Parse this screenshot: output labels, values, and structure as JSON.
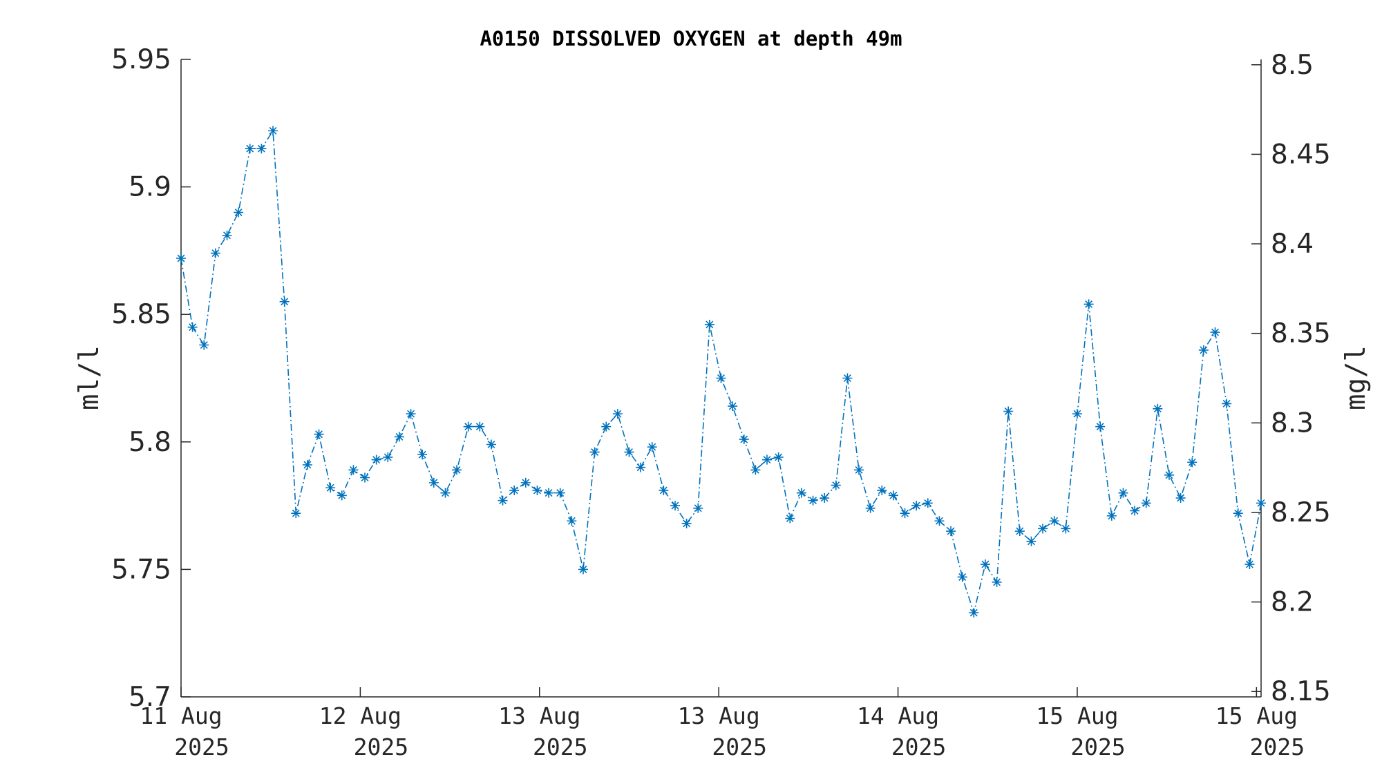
{
  "chart_data": {
    "type": "line",
    "title": "A0150 DISSOLVED OXYGEN at depth 49m",
    "ylabel_left": "ml/l",
    "ylabel_right": "mg/l",
    "ylim_left": [
      5.7,
      5.95
    ],
    "ylim_right": [
      8.147,
      8.503
    ],
    "yticks_left": [
      {
        "value": 5.7,
        "label": "5.7"
      },
      {
        "value": 5.75,
        "label": "5.75"
      },
      {
        "value": 5.8,
        "label": "5.8"
      },
      {
        "value": 5.85,
        "label": "5.85"
      },
      {
        "value": 5.9,
        "label": "5.9"
      },
      {
        "value": 5.95,
        "label": "5.95"
      }
    ],
    "yticks_right": [
      {
        "value": 8.15,
        "label": "8.15"
      },
      {
        "value": 8.2,
        "label": "8.2"
      },
      {
        "value": 8.25,
        "label": "8.25"
      },
      {
        "value": 8.3,
        "label": "8.3"
      },
      {
        "value": 8.35,
        "label": "8.35"
      },
      {
        "value": 8.4,
        "label": "8.4"
      },
      {
        "value": 8.45,
        "label": "8.45"
      },
      {
        "value": 8.5,
        "label": "8.5"
      }
    ],
    "xlim": [
      0,
      94
    ],
    "xticks": [
      {
        "value": 0,
        "line1": "11 Aug",
        "line2": "2025"
      },
      {
        "value": 15.6,
        "line1": "12 Aug",
        "line2": "2025"
      },
      {
        "value": 31.2,
        "line1": "13 Aug",
        "line2": "2025"
      },
      {
        "value": 46.8,
        "line1": "13 Aug",
        "line2": "2025"
      },
      {
        "value": 62.4,
        "line1": "14 Aug",
        "line2": "2025"
      },
      {
        "value": 78.0,
        "line1": "15 Aug",
        "line2": "2025"
      },
      {
        "value": 93.6,
        "line1": "15 Aug",
        "line2": "2025"
      }
    ],
    "grid": false,
    "series": [
      {
        "marker": "asterisk",
        "line_style": "dash-dot",
        "color": "#0072bd",
        "values": [
          5.872,
          5.845,
          5.838,
          5.874,
          5.881,
          5.89,
          5.915,
          5.915,
          5.922,
          5.855,
          5.772,
          5.791,
          5.803,
          5.782,
          5.779,
          5.789,
          5.786,
          5.793,
          5.794,
          5.802,
          5.811,
          5.795,
          5.784,
          5.78,
          5.789,
          5.806,
          5.806,
          5.799,
          5.777,
          5.781,
          5.784,
          5.781,
          5.78,
          5.78,
          5.769,
          5.75,
          5.796,
          5.806,
          5.811,
          5.796,
          5.79,
          5.798,
          5.781,
          5.775,
          5.768,
          5.774,
          5.846,
          5.825,
          5.814,
          5.801,
          5.789,
          5.793,
          5.794,
          5.77,
          5.78,
          5.777,
          5.778,
          5.783,
          5.825,
          5.789,
          5.774,
          5.781,
          5.779,
          5.772,
          5.775,
          5.776,
          5.769,
          5.765,
          5.747,
          5.733,
          5.752,
          5.745,
          5.812,
          5.765,
          5.761,
          5.766,
          5.769,
          5.766,
          5.811,
          5.854,
          5.806,
          5.771,
          5.78,
          5.773,
          5.776,
          5.813,
          5.787,
          5.778,
          5.792,
          5.836,
          5.843,
          5.815,
          5.772,
          5.752,
          5.776
        ]
      }
    ]
  }
}
